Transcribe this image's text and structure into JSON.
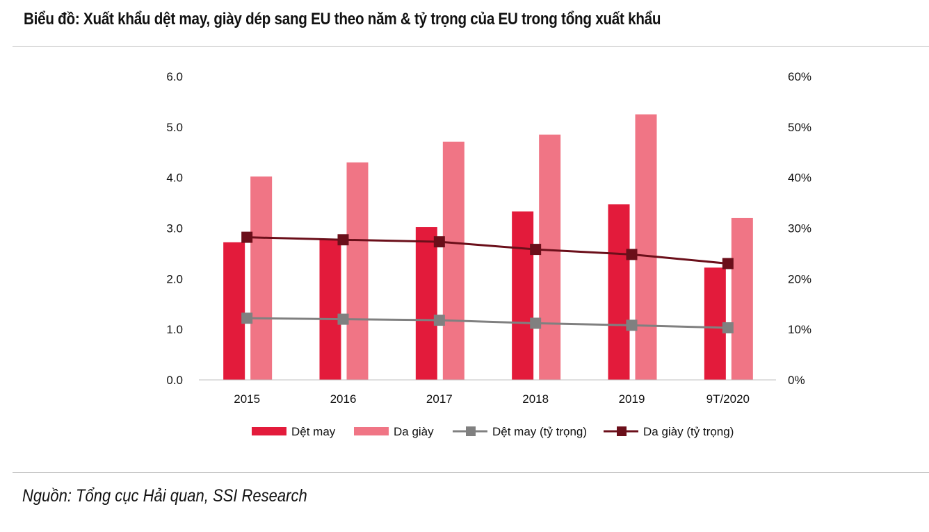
{
  "title": "Biểu đồ: Xuất khẩu dệt may, giày dép sang EU theo năm & tỷ trọng của EU trong tổng xuất khẩu",
  "source": "Nguồn: Tổng cục Hải quan, SSI Research",
  "chart_data": {
    "type": "bar",
    "title": "Biểu đồ: Xuất khẩu dệt may, giày dép sang EU theo năm & tỷ trọng của EU trong tổng xuất khẩu",
    "categories": [
      "2015",
      "2016",
      "2017",
      "2018",
      "2019",
      "9T/2020"
    ],
    "series": [
      {
        "name": "Dệt may",
        "type": "bar",
        "axis": "left",
        "color": "#e31b3b",
        "values": [
          2.72,
          2.78,
          3.02,
          3.33,
          3.47,
          2.22
        ]
      },
      {
        "name": "Da giày",
        "type": "bar",
        "axis": "left",
        "color": "#f07585",
        "values": [
          4.02,
          4.3,
          4.71,
          4.85,
          5.25,
          3.2
        ]
      },
      {
        "name": "Dệt may (tỷ trọng)",
        "type": "line",
        "axis": "right",
        "color": "#808080",
        "values": [
          0.122,
          0.12,
          0.118,
          0.112,
          0.108,
          0.103
        ]
      },
      {
        "name": "Da giày (tỷ trọng)",
        "type": "line",
        "axis": "right",
        "color": "#6b0f1a",
        "values": [
          0.282,
          0.277,
          0.273,
          0.258,
          0.248,
          0.23
        ]
      }
    ],
    "ylim": [
      0,
      6
    ],
    "yticks": [
      "0.0",
      "1.0",
      "2.0",
      "3.0",
      "4.0",
      "5.0",
      "6.0"
    ],
    "y2lim": [
      0,
      0.6
    ],
    "y2ticks": [
      "0%",
      "10%",
      "20%",
      "30%",
      "40%",
      "50%",
      "60%"
    ],
    "legend_position": "bottom",
    "grid": false
  }
}
